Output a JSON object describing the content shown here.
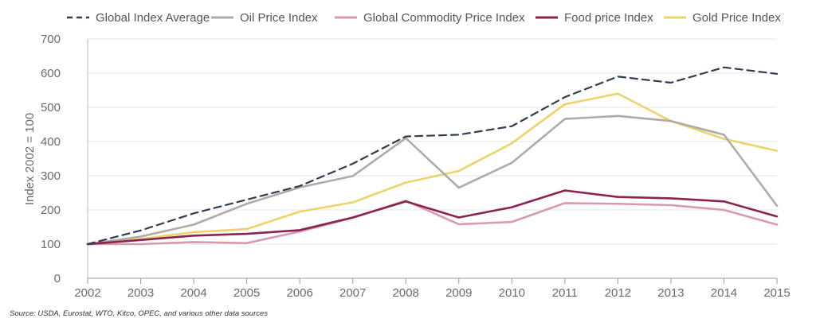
{
  "chart_data": {
    "type": "line",
    "title": "",
    "xlabel": "",
    "ylabel": "Index 2002 = 100",
    "x": [
      "2002",
      "2003",
      "2004",
      "2005",
      "2006",
      "2007",
      "2008",
      "2009",
      "2010",
      "2011",
      "2012",
      "2013",
      "2014",
      "2015"
    ],
    "ylim": [
      0,
      700
    ],
    "yticks": [
      "0",
      "100",
      "200",
      "300",
      "400",
      "500",
      "600",
      "700"
    ],
    "legend_position": "top",
    "source": "Source: USDA, Eurostat, WTO, Kitco, OPEC, and various other data sources",
    "series": [
      {
        "name": "Global Index Average",
        "color": "#2f3d52",
        "dashed": true,
        "values": [
          100,
          140,
          190,
          230,
          270,
          335,
          415,
          420,
          445,
          530,
          590,
          572,
          617,
          598
        ]
      },
      {
        "name": "Oil Price Index",
        "color": "#b0aaaa",
        "dashed": false,
        "values": [
          100,
          122,
          157,
          218,
          266,
          299,
          410,
          265,
          338,
          466,
          475,
          460,
          420,
          212
        ]
      },
      {
        "name": "Global Commodity Price Index",
        "color": "#d99aae",
        "dashed": false,
        "values": [
          100,
          100,
          106,
          103,
          137,
          177,
          227,
          158,
          165,
          220,
          218,
          214,
          200,
          157
        ]
      },
      {
        "name": "Food price Index",
        "color": "#8b2252",
        "dashed": false,
        "values": [
          100,
          112,
          125,
          130,
          141,
          178,
          225,
          178,
          208,
          257,
          238,
          234,
          225,
          181
        ]
      },
      {
        "name": "Gold Price Index",
        "color": "#ecd36a",
        "dashed": false,
        "values": [
          100,
          115,
          135,
          144,
          195,
          222,
          280,
          314,
          395,
          509,
          540,
          460,
          408,
          373
        ]
      }
    ]
  }
}
